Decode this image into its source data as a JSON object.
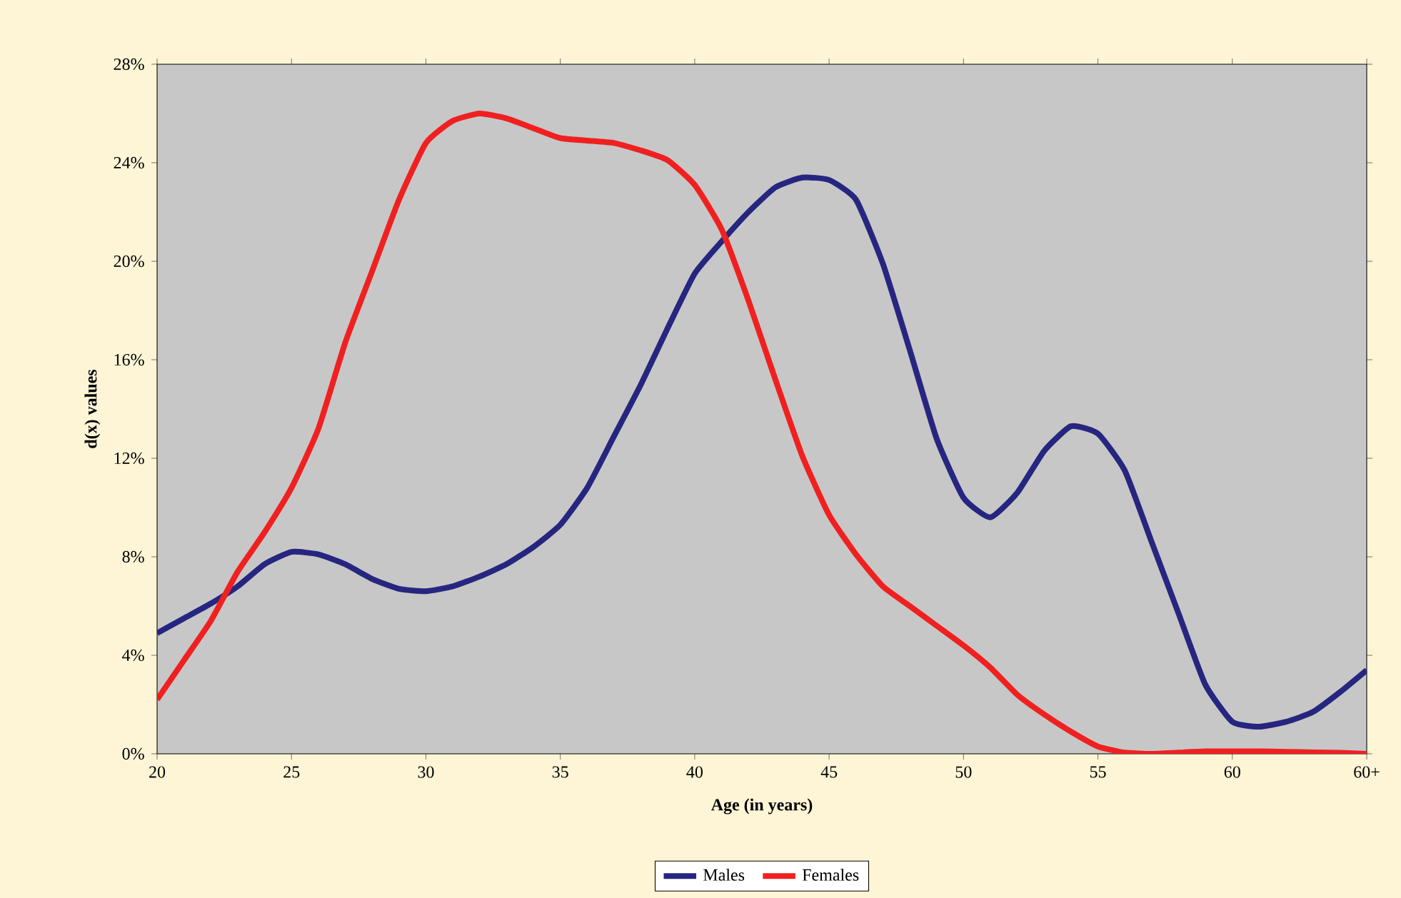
{
  "chart_data": {
    "type": "line",
    "xlabel": "Age (in years)",
    "ylabel": "d(x) values",
    "x": [
      20,
      21,
      22,
      23,
      24,
      25,
      26,
      27,
      28,
      29,
      30,
      31,
      32,
      33,
      34,
      35,
      36,
      37,
      38,
      39,
      40,
      41,
      42,
      43,
      44,
      45,
      46,
      47,
      48,
      49,
      50,
      51,
      52,
      53,
      54,
      55,
      56,
      57,
      58,
      59,
      60,
      61,
      62,
      63,
      64,
      65
    ],
    "series": [
      {
        "name": "Males",
        "color": "#262680",
        "values": [
          4.9,
          5.5,
          6.1,
          6.8,
          7.7,
          8.2,
          8.1,
          7.7,
          7.1,
          6.7,
          6.6,
          6.8,
          7.2,
          7.7,
          8.4,
          9.3,
          10.8,
          12.9,
          15.0,
          17.3,
          19.5,
          20.8,
          22.0,
          23.0,
          23.4,
          23.3,
          22.5,
          19.9,
          16.4,
          12.8,
          10.4,
          9.6,
          10.6,
          12.3,
          13.3,
          13.0,
          11.5,
          8.6,
          5.7,
          2.8,
          1.3,
          1.1,
          1.3,
          1.7,
          2.5,
          3.4
        ]
      },
      {
        "name": "Females",
        "color": "#f02020",
        "values": [
          2.2,
          3.8,
          5.4,
          7.4,
          9.0,
          10.8,
          13.2,
          16.7,
          19.6,
          22.5,
          24.8,
          25.7,
          26.0,
          25.8,
          25.4,
          25.0,
          24.9,
          24.8,
          24.5,
          24.1,
          23.1,
          21.3,
          18.4,
          15.2,
          12.1,
          9.7,
          8.1,
          6.8,
          6.0,
          5.2,
          4.4,
          3.5,
          2.4,
          1.6,
          0.9,
          0.3,
          0.05,
          0,
          0.05,
          0.1,
          0.1,
          0.1,
          0.08,
          0.06,
          0.04,
          0.0
        ]
      }
    ],
    "xlim": [
      20,
      65
    ],
    "xticks": [
      20,
      25,
      30,
      35,
      40,
      45,
      50,
      55,
      60,
      {
        "value": 65,
        "label": "60+"
      }
    ],
    "ylim": [
      0,
      28
    ],
    "yticks": [
      {
        "value": 0,
        "label": "0%"
      },
      {
        "value": 4,
        "label": "4%"
      },
      {
        "value": 8,
        "label": "8%"
      },
      {
        "value": 12,
        "label": "12%"
      },
      {
        "value": 16,
        "label": "16%"
      },
      {
        "value": 20,
        "label": "20%"
      },
      {
        "value": 24,
        "label": "24%"
      },
      {
        "value": 28,
        "label": "28%"
      }
    ],
    "legend": "bottom",
    "grid": false,
    "marker": "none",
    "line_style": "solid"
  }
}
